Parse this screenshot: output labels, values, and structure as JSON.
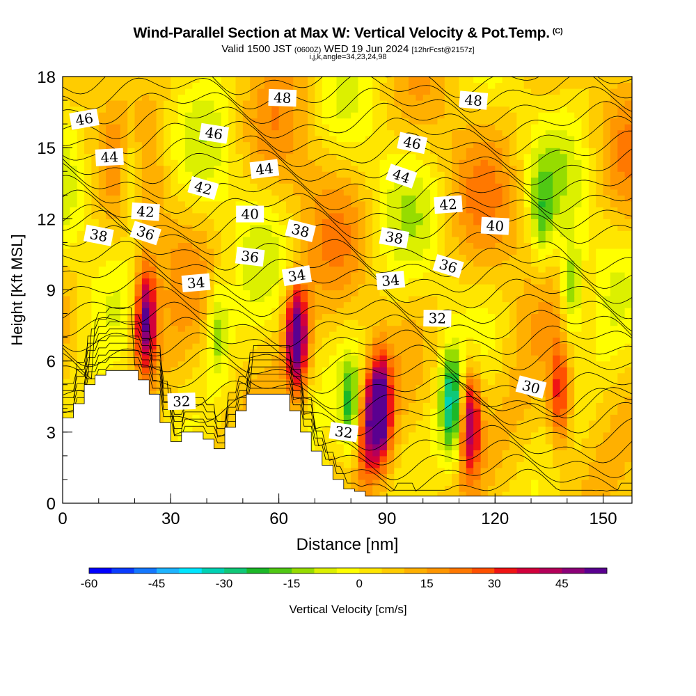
{
  "title": {
    "main": "Wind-Parallel Section at Max W: Vertical Velocity & Pot.Temp.",
    "copyright": "(C)",
    "valid_prefix": "Valid 1500 JST",
    "valid_z": "(0600Z)",
    "valid_date": "WED 19 Jun 2024",
    "forecast": "[12hrFcst@2157z]",
    "indices": "i,j,k,angle=34,23,24,98"
  },
  "colors": {
    "scale": [
      "#0000ff",
      "#0a3cff",
      "#1478ff",
      "#1eb4ff",
      "#00e6ff",
      "#00d2b4",
      "#10c878",
      "#1cb828",
      "#50c814",
      "#96dc00",
      "#dcf000",
      "#ffff00",
      "#ffe600",
      "#ffcc00",
      "#ffb000",
      "#ff9600",
      "#ff7800",
      "#ff5000",
      "#f01414",
      "#d2003c",
      "#b4005a",
      "#8c0078",
      "#5a0090"
    ],
    "terrain": "#ffffff",
    "contour": "#000000"
  },
  "chart_data": {
    "type": "heatmap",
    "xlabel": "Distance [nm]",
    "ylabel": "Height [Kft MSL]",
    "xlim": [
      0,
      158
    ],
    "ylim": [
      0,
      18
    ],
    "xticks": [
      0,
      30,
      60,
      90,
      120,
      150
    ],
    "yticks": [
      0,
      3,
      6,
      9,
      12,
      15,
      18
    ],
    "colorbar": {
      "label": "Vertical Velocity [cm/s]",
      "min": -60,
      "max": 55,
      "step": 5,
      "ticks": [
        -60,
        -45,
        -30,
        -15,
        0,
        15,
        30,
        45
      ]
    },
    "terrain_height_kft": {
      "x": [
        0,
        3,
        6,
        9,
        12,
        15,
        18,
        21,
        24,
        27,
        30,
        33,
        36,
        39,
        42,
        45,
        48,
        51,
        54,
        57,
        60,
        63,
        66,
        69,
        72,
        75,
        78,
        81,
        84,
        87,
        90,
        93,
        96,
        99,
        102,
        105,
        108,
        111,
        114,
        117,
        120,
        123,
        126,
        129,
        132,
        135,
        138,
        141,
        144,
        147,
        150,
        153,
        156,
        158
      ],
      "y": [
        3.6,
        4.2,
        5.0,
        5.4,
        5.6,
        5.6,
        5.6,
        5.2,
        4.6,
        3.4,
        2.6,
        3.0,
        3.0,
        2.7,
        2.3,
        3.2,
        3.9,
        4.6,
        4.6,
        4.6,
        4.6,
        3.9,
        3.0,
        2.2,
        1.6,
        1.0,
        0.6,
        0.5,
        0.3,
        0.3,
        0.3,
        0.3,
        0.3,
        0.3,
        0.3,
        0.3,
        0.3,
        0.3,
        0.3,
        0.3,
        0.3,
        0.3,
        0.3,
        0.3,
        0.3,
        0.3,
        0.3,
        0.3,
        0.3,
        0.3,
        0.3,
        0.3,
        0.3,
        0.3
      ]
    },
    "updraft_cores": [
      {
        "x": 23,
        "z": 7.8,
        "w": 48
      },
      {
        "x": 65,
        "z": 7.0,
        "w": 52
      },
      {
        "x": 88,
        "z": 4.0,
        "w": 55
      },
      {
        "x": 113,
        "z": 3.5,
        "w": 42
      },
      {
        "x": 138,
        "z": 4.5,
        "w": 28
      },
      {
        "x": 84,
        "z": 3.0,
        "w": 25
      }
    ],
    "downdraft_cores": [
      {
        "x": 19,
        "z": 14.0,
        "w": -22
      },
      {
        "x": 43,
        "z": 7.5,
        "w": -18
      },
      {
        "x": 80,
        "z": 4.0,
        "w": -28
      },
      {
        "x": 108,
        "z": 4.2,
        "w": -35
      },
      {
        "x": 141,
        "z": 9.0,
        "w": -22
      },
      {
        "x": 133,
        "z": 12.0,
        "w": -16
      }
    ],
    "theta_contours_label": "Pot.Temp.",
    "contour_labels": [
      {
        "text": "46",
        "x": 6,
        "z": 16.2
      },
      {
        "text": "44",
        "x": 13,
        "z": 14.6
      },
      {
        "text": "42",
        "x": 23,
        "z": 12.3
      },
      {
        "text": "38",
        "x": 10,
        "z": 11.3
      },
      {
        "text": "36",
        "x": 23,
        "z": 11.4
      },
      {
        "text": "34",
        "x": 37,
        "z": 9.3
      },
      {
        "text": "48",
        "x": 61,
        "z": 17.1
      },
      {
        "text": "46",
        "x": 42,
        "z": 15.6
      },
      {
        "text": "42",
        "x": 39,
        "z": 13.3
      },
      {
        "text": "44",
        "x": 56,
        "z": 14.1
      },
      {
        "text": "40",
        "x": 52,
        "z": 12.2
      },
      {
        "text": "36",
        "x": 52,
        "z": 10.4
      },
      {
        "text": "38",
        "x": 66,
        "z": 11.5
      },
      {
        "text": "34",
        "x": 65,
        "z": 9.6
      },
      {
        "text": "32",
        "x": 33,
        "z": 4.3
      },
      {
        "text": "48",
        "x": 114,
        "z": 17.0
      },
      {
        "text": "46",
        "x": 97,
        "z": 15.2
      },
      {
        "text": "44",
        "x": 94,
        "z": 13.8
      },
      {
        "text": "42",
        "x": 107,
        "z": 12.6
      },
      {
        "text": "40",
        "x": 120,
        "z": 11.7
      },
      {
        "text": "38",
        "x": 92,
        "z": 11.2
      },
      {
        "text": "36",
        "x": 107,
        "z": 10.0
      },
      {
        "text": "34",
        "x": 91,
        "z": 9.4
      },
      {
        "text": "32",
        "x": 104,
        "z": 7.8
      },
      {
        "text": "32",
        "x": 78,
        "z": 3.0
      },
      {
        "text": "30",
        "x": 130,
        "z": 4.9
      }
    ]
  }
}
